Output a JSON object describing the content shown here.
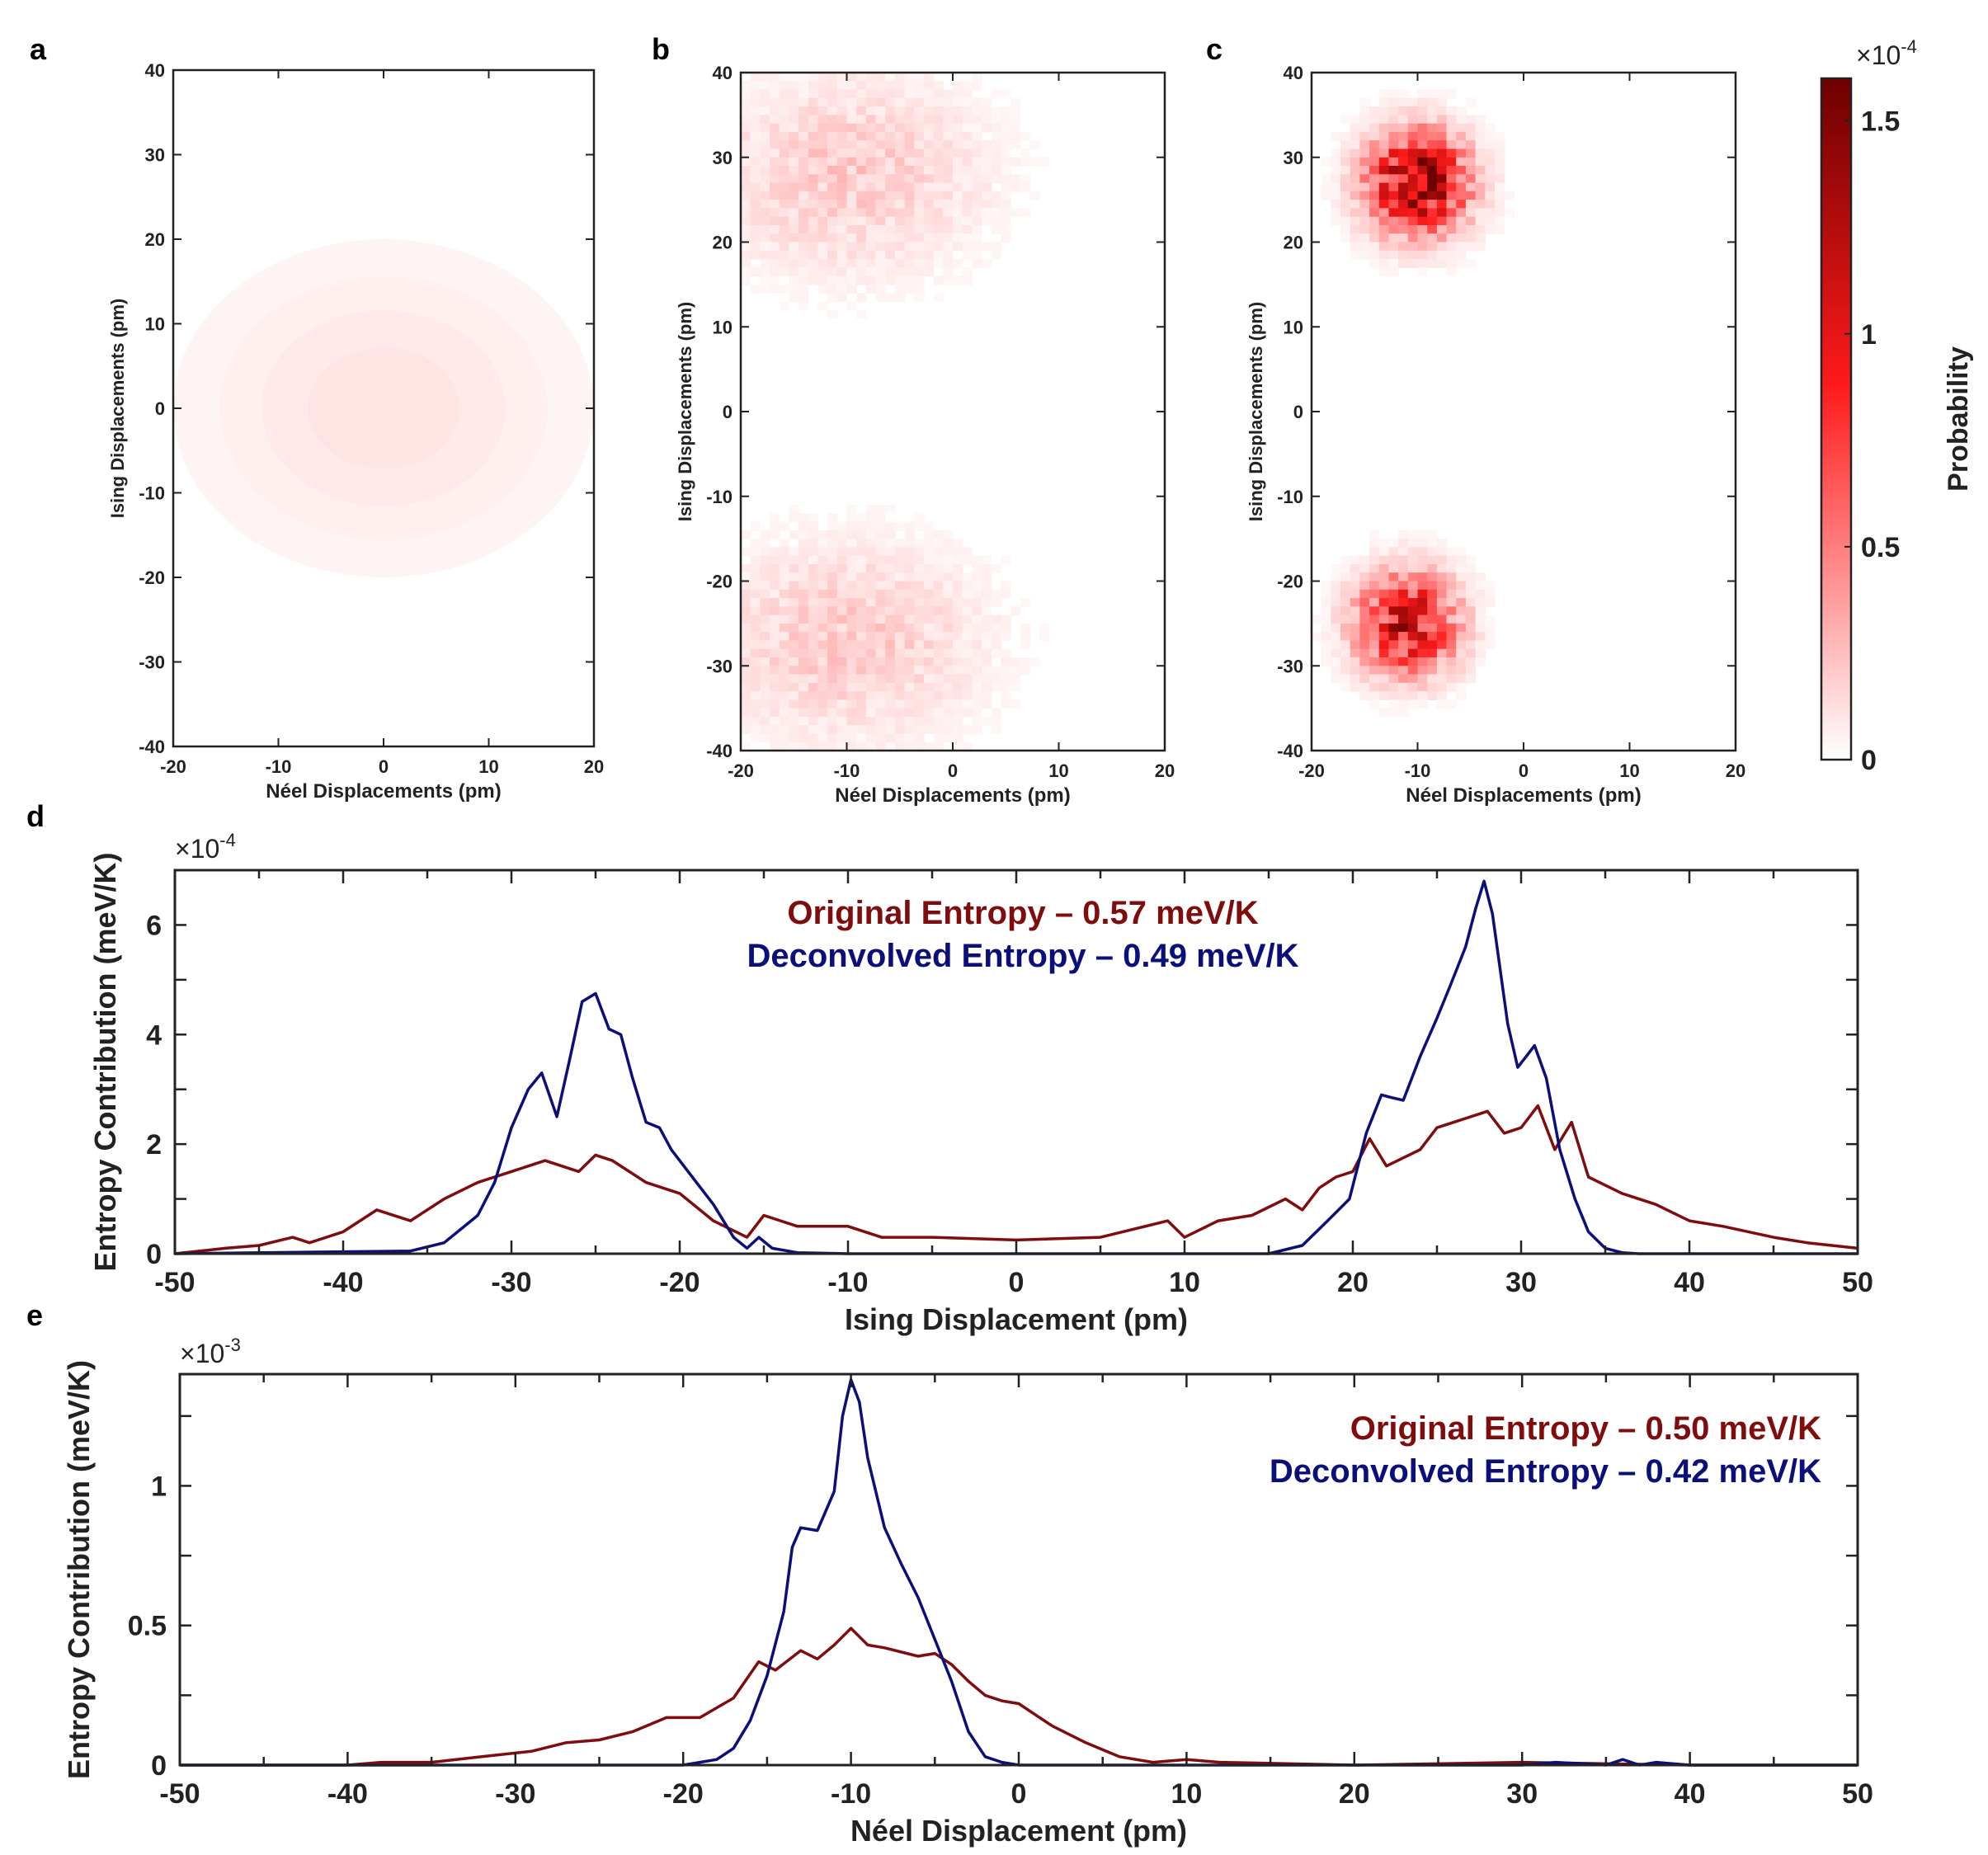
{
  "colors": {
    "original": "#7f0d0d",
    "deconvolved": "#0a0f7a",
    "axis": "#222222",
    "red": "#ff0000",
    "darkred": "#8b0000"
  },
  "chart_data": [
    {
      "panel": "a",
      "type": "heatmap",
      "xlabel": "Néel Displacements (pm)",
      "ylabel": "Ising Displacements (pm)",
      "xlim": [
        -20,
        20
      ],
      "ylim": [
        -40,
        40
      ],
      "xticks": [
        "-20",
        "-10",
        "0",
        "10",
        "20"
      ],
      "yticks": [
        "40",
        "30",
        "20",
        "10",
        "0",
        "-10",
        "-20",
        "-30",
        "-40"
      ],
      "blobs": [
        {
          "cx": 0,
          "cy": 0,
          "sx": 20,
          "sy": 20,
          "peak": 8e-06,
          "levels": 4
        }
      ]
    },
    {
      "panel": "b",
      "type": "heatmap",
      "xlabel": "Néel Displacements (pm)",
      "ylabel": "Ising Displacements (pm)",
      "xlim": [
        -20,
        20
      ],
      "ylim": [
        -40,
        40
      ],
      "xticks": [
        "-20",
        "-10",
        "0",
        "10",
        "20"
      ],
      "yticks": [
        "40",
        "30",
        "20",
        "10",
        "0",
        "-10",
        "-20",
        "-30",
        "-40"
      ],
      "blobs": [
        {
          "cx": -10,
          "cy": 28,
          "sx": 9,
          "sy": 8,
          "peak": 2.2e-05
        },
        {
          "cx": -10,
          "cy": -27,
          "sx": 9,
          "sy": 8,
          "peak": 2.2e-05
        }
      ]
    },
    {
      "panel": "c",
      "type": "heatmap",
      "xlabel": "Néel Displacements (pm)",
      "ylabel": "Ising Displacements (pm)",
      "xlim": [
        -20,
        20
      ],
      "ylim": [
        -40,
        40
      ],
      "xticks": [
        "-20",
        "-10",
        "0",
        "10",
        "20"
      ],
      "yticks": [
        "40",
        "30",
        "20",
        "10",
        "0",
        "-10",
        "-20",
        "-30",
        "-40"
      ],
      "blobs": [
        {
          "cx": -10,
          "cy": 27,
          "sx": 3.2,
          "sy": 4.0,
          "peak": 0.00015
        },
        {
          "cx": -11,
          "cy": -25,
          "sx": 3.2,
          "sy": 4.0,
          "peak": 0.00012
        }
      ]
    },
    {
      "panel": "colorbar",
      "type": "colorbar",
      "label": "Probability",
      "exponent_base": "×10",
      "exponent": "-4",
      "range": [
        0,
        1.6
      ],
      "ticks": [
        "1.5",
        "1",
        "0.5",
        "0"
      ],
      "tick_values": [
        1.5,
        1,
        0.5,
        0
      ]
    },
    {
      "panel": "d",
      "type": "line",
      "xlabel": "Ising Displacement (pm)",
      "ylabel": "Entropy Contribution (meV/K)",
      "exponent_base": "×10",
      "exponent": "-4",
      "xlim": [
        -50,
        50
      ],
      "ylim": [
        0,
        7
      ],
      "xticks": [
        "-50",
        "-40",
        "-30",
        "-20",
        "-10",
        "0",
        "10",
        "20",
        "30",
        "40",
        "50"
      ],
      "yticks": [
        "0",
        "2",
        "4",
        "6"
      ],
      "legend": [
        "Original Entropy – 0.57 meV/K",
        "Deconvolved Entropy – 0.49 meV/K"
      ],
      "series": [
        {
          "name": "Original Entropy",
          "x": [
            -50,
            -47,
            -45,
            -43,
            -42,
            -40,
            -38,
            -36,
            -34,
            -32,
            -30,
            -28,
            -26,
            -25,
            -24,
            -22,
            -20,
            -18,
            -16,
            -15,
            -13,
            -10,
            -8,
            -5,
            0,
            5,
            9,
            10,
            12,
            14,
            16,
            17,
            18,
            19,
            20,
            21,
            22,
            24,
            25,
            26,
            28,
            29,
            30,
            31,
            32,
            33,
            34,
            36,
            38,
            40,
            42,
            45,
            47,
            50
          ],
          "y": [
            0,
            0.1,
            0.15,
            0.3,
            0.2,
            0.4,
            0.8,
            0.6,
            1.0,
            1.3,
            1.5,
            1.7,
            1.5,
            1.8,
            1.7,
            1.3,
            1.1,
            0.6,
            0.3,
            0.7,
            0.5,
            0.5,
            0.3,
            0.3,
            0.25,
            0.3,
            0.6,
            0.3,
            0.6,
            0.7,
            1.0,
            0.8,
            1.2,
            1.4,
            1.5,
            2.1,
            1.6,
            1.9,
            2.3,
            2.4,
            2.6,
            2.2,
            2.3,
            2.7,
            1.9,
            2.4,
            1.4,
            1.1,
            0.9,
            0.6,
            0.5,
            0.3,
            0.2,
            0.1
          ]
        },
        {
          "name": "Deconvolved Entropy",
          "x": [
            -50,
            -36,
            -34,
            -33,
            -32,
            -31,
            -30,
            -29,
            -28.2,
            -27.3,
            -26.5,
            -25.8,
            -25,
            -24.2,
            -23.5,
            -22.8,
            -22,
            -21.2,
            -20.5,
            -19.5,
            -18,
            -16.8,
            -16,
            -15.3,
            -14.5,
            -13,
            -10,
            15,
            17,
            18.5,
            19.8,
            20.8,
            21.7,
            22.3,
            23,
            24,
            25,
            25.8,
            26.7,
            27.3,
            27.8,
            28.3,
            29.2,
            29.8,
            30.3,
            30.8,
            31.5,
            32.3,
            33.2,
            34,
            35,
            36,
            37,
            50
          ],
          "y": [
            0,
            0.05,
            0.2,
            0.45,
            0.7,
            1.3,
            2.3,
            3.0,
            3.3,
            2.5,
            3.6,
            4.6,
            4.75,
            4.1,
            4.0,
            3.2,
            2.4,
            2.3,
            1.9,
            1.5,
            0.9,
            0.3,
            0.1,
            0.3,
            0.1,
            0.02,
            0,
            0,
            0.15,
            0.6,
            1.0,
            2.2,
            2.9,
            2.85,
            2.8,
            3.6,
            4.3,
            4.9,
            5.6,
            6.3,
            6.8,
            6.2,
            4.2,
            3.4,
            3.6,
            3.8,
            3.2,
            1.9,
            1.0,
            0.4,
            0.1,
            0.02,
            0,
            0
          ]
        }
      ]
    },
    {
      "panel": "e",
      "type": "line",
      "xlabel": "Néel Displacement (pm)",
      "ylabel": "Entropy Contribution (meV/K)",
      "exponent_base": "×10",
      "exponent": "-3",
      "xlim": [
        -50,
        50
      ],
      "ylim": [
        0,
        1.4
      ],
      "xticks": [
        "-50",
        "-40",
        "-30",
        "-20",
        "-10",
        "0",
        "10",
        "20",
        "30",
        "40",
        "50"
      ],
      "yticks": [
        "0",
        "0.5",
        "1"
      ],
      "legend": [
        "Original Entropy – 0.50 meV/K",
        "Deconvolved Entropy – 0.42 meV/K"
      ],
      "series": [
        {
          "name": "Original Entropy",
          "x": [
            -50,
            -40,
            -38,
            -35,
            -32,
            -29,
            -27,
            -25,
            -23,
            -21,
            -19,
            -17,
            -15.5,
            -14.5,
            -13,
            -12,
            -11,
            -10,
            -9,
            -8,
            -6,
            -5,
            -4,
            -3,
            -2,
            -1,
            0,
            1,
            2,
            4,
            6,
            8,
            10,
            12,
            20,
            30,
            40,
            50
          ],
          "y": [
            0,
            0,
            0.01,
            0.01,
            0.03,
            0.05,
            0.08,
            0.09,
            0.12,
            0.17,
            0.17,
            0.24,
            0.37,
            0.34,
            0.41,
            0.38,
            0.43,
            0.49,
            0.43,
            0.42,
            0.39,
            0.4,
            0.36,
            0.3,
            0.25,
            0.23,
            0.22,
            0.18,
            0.14,
            0.08,
            0.03,
            0.01,
            0.02,
            0.01,
            0,
            0.01,
            0,
            0
          ]
        },
        {
          "name": "Deconvolved Entropy",
          "x": [
            -50,
            -20,
            -18,
            -17,
            -16,
            -15,
            -14,
            -13.5,
            -13,
            -12,
            -11,
            -10.5,
            -10,
            -9.5,
            -9,
            -8,
            -7,
            -6,
            -5,
            -4,
            -3,
            -2,
            -1,
            0,
            10,
            30,
            32,
            35,
            36,
            37,
            38,
            40,
            50
          ],
          "y": [
            0,
            0,
            0.02,
            0.06,
            0.16,
            0.32,
            0.55,
            0.78,
            0.85,
            0.84,
            0.98,
            1.25,
            1.38,
            1.3,
            1.1,
            0.85,
            0.72,
            0.6,
            0.45,
            0.3,
            0.12,
            0.03,
            0.01,
            0,
            0,
            0,
            0.01,
            0,
            0.02,
            0,
            0.01,
            0,
            0
          ]
        }
      ]
    }
  ],
  "panel_labels": [
    "a",
    "b",
    "c",
    "d",
    "e"
  ]
}
